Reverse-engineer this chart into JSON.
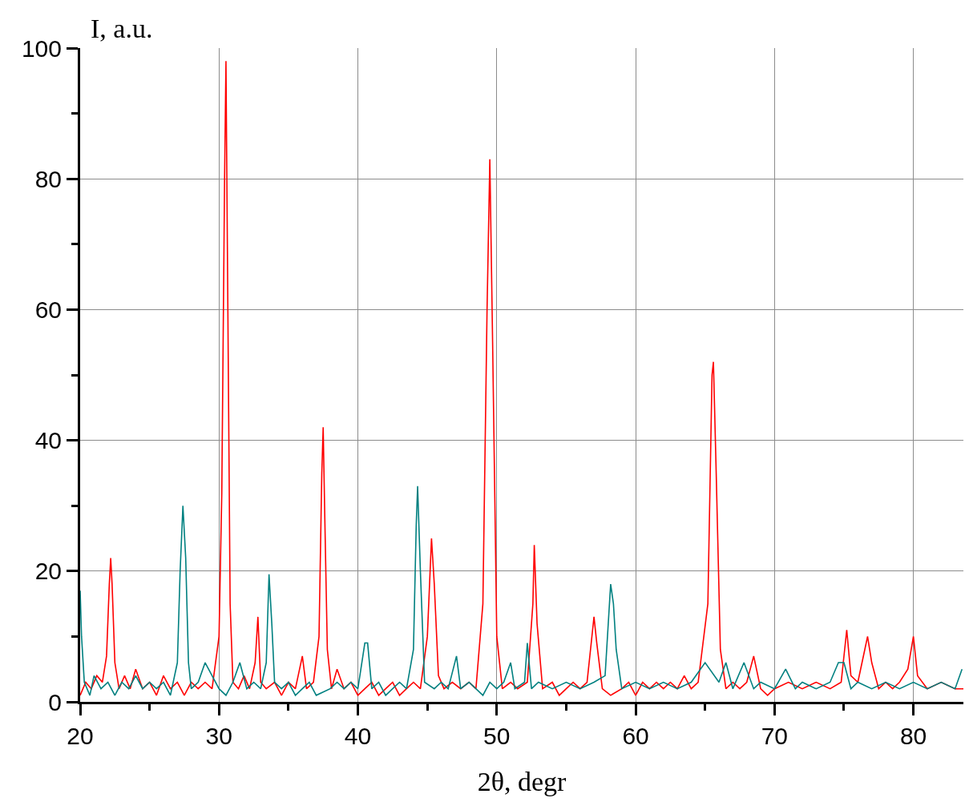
{
  "chart_data": {
    "type": "line",
    "xlabel": "2θ, degr",
    "ylabel": "I, a.u.",
    "xlim": [
      20,
      83.6
    ],
    "ylim": [
      0,
      100
    ],
    "xticks": [
      20,
      {
        "value": 25,
        "label": null
      },
      30,
      {
        "value": 35,
        "label": null
      },
      40,
      {
        "value": 45,
        "label": null
      },
      50,
      {
        "value": 55,
        "label": null
      },
      60,
      {
        "value": 65,
        "label": null
      },
      70,
      {
        "value": 75,
        "label": null
      },
      80
    ],
    "yticks": [
      0,
      {
        "value": 10,
        "label": null
      },
      20,
      {
        "value": 30,
        "label": null
      },
      40,
      {
        "value": 50,
        "label": null
      },
      60,
      {
        "value": 70,
        "label": null
      },
      80,
      {
        "value": 90,
        "label": null
      },
      100
    ],
    "grid": true,
    "marker": "none",
    "line_style": "solid",
    "series": [
      {
        "color": "#ff0000",
        "x": [
          20,
          20.4,
          20.8,
          21.2,
          21.6,
          21.9,
          22.1,
          22.2,
          22.3,
          22.5,
          22.8,
          23.2,
          23.6,
          24,
          24.5,
          25,
          25.5,
          26,
          26.5,
          27,
          27.5,
          28,
          28.5,
          29,
          29.5,
          30.0,
          30.2,
          30.4,
          30.5,
          30.6,
          30.8,
          31.0,
          31.4,
          31.8,
          32.2,
          32.6,
          32.8,
          33.0,
          33.4,
          34,
          34.5,
          35,
          35.5,
          36.0,
          36.3,
          36.8,
          37.2,
          37.4,
          37.5,
          37.6,
          37.8,
          38.1,
          38.5,
          39,
          39.5,
          40,
          40.5,
          41,
          41.5,
          42,
          42.5,
          43,
          43.5,
          44,
          44.5,
          45.0,
          45.3,
          45.5,
          45.8,
          46.2,
          46.8,
          47.4,
          48,
          48.5,
          49.0,
          49.3,
          49.5,
          49.7,
          50.0,
          50.4,
          51,
          51.5,
          52.2,
          52.6,
          52.7,
          52.9,
          53.3,
          54,
          54.5,
          55,
          55.5,
          56,
          56.5,
          56.9,
          57.0,
          57.2,
          57.6,
          58.2,
          59,
          59.5,
          60,
          60.5,
          61,
          61.5,
          62,
          62.5,
          63,
          63.5,
          64,
          64.5,
          65.2,
          65.5,
          65.6,
          65.8,
          66.1,
          66.5,
          67,
          67.5,
          68,
          68.5,
          69,
          69.5,
          70,
          71,
          72,
          73,
          74,
          74.8,
          75.2,
          75.5,
          76,
          76.5,
          76.7,
          77,
          77.5,
          78,
          78.5,
          79,
          79.6,
          80.0,
          80.3,
          81,
          82,
          83,
          83.6
        ],
        "values": [
          1,
          3,
          2,
          4,
          3,
          7,
          18,
          22,
          18,
          6,
          2,
          4,
          2,
          5,
          2,
          3,
          1,
          4,
          2,
          3,
          1,
          3,
          2,
          3,
          2,
          10,
          32,
          80,
          98,
          70,
          15,
          3,
          2,
          4,
          2,
          6,
          13,
          3,
          2,
          3,
          1,
          3,
          2,
          7,
          2,
          3,
          10,
          35,
          42,
          30,
          8,
          2,
          5,
          2,
          3,
          1,
          2,
          3,
          1,
          2,
          3,
          1,
          2,
          3,
          2,
          10,
          25,
          18,
          4,
          2,
          3,
          2,
          3,
          2,
          15,
          60,
          83,
          55,
          10,
          2,
          3,
          2,
          3,
          15,
          24,
          12,
          2,
          3,
          1,
          2,
          3,
          2,
          3,
          11,
          13,
          9,
          2,
          1,
          2,
          3,
          1,
          3,
          2,
          3,
          2,
          3,
          2,
          4,
          2,
          3,
          15,
          50,
          52,
          35,
          8,
          2,
          3,
          2,
          3,
          7,
          2,
          1,
          2,
          3,
          2,
          3,
          2,
          3,
          11,
          4,
          3,
          8,
          10,
          6,
          2,
          3,
          2,
          3,
          5,
          10,
          4,
          2,
          3,
          2,
          2
        ]
      },
      {
        "color": "#008080",
        "x": [
          20,
          20.1,
          20.3,
          20.7,
          21,
          21.5,
          22,
          22.5,
          23,
          23.5,
          24,
          24.5,
          25,
          25.5,
          26,
          26.5,
          27,
          27.2,
          27.4,
          27.6,
          27.8,
          28,
          28.5,
          29,
          29.5,
          30,
          30.5,
          31,
          31.5,
          32,
          32.5,
          33,
          33.4,
          33.6,
          33.8,
          34,
          34.5,
          35,
          35.5,
          36,
          36.5,
          37,
          38,
          38.5,
          39,
          39.5,
          40,
          40.5,
          40.7,
          41,
          41.5,
          42,
          42.5,
          43,
          43.5,
          44,
          44.2,
          44.3,
          44.5,
          44.8,
          45.5,
          46,
          46.5,
          47.1,
          47.4,
          48,
          48.5,
          49,
          49.5,
          50,
          50.5,
          51,
          51.3,
          52,
          52.2,
          52.5,
          53,
          54,
          55,
          56,
          57,
          57.8,
          58.2,
          58.4,
          58.6,
          59,
          60,
          61,
          62,
          63,
          64,
          65,
          66,
          66.5,
          67,
          67.8,
          68.5,
          69,
          70,
          70.8,
          71.5,
          72,
          73,
          74,
          74.6,
          75,
          75.5,
          76,
          77,
          78,
          79,
          80,
          81,
          82,
          83,
          83.5
        ],
        "values": [
          17,
          10,
          3,
          1,
          4,
          2,
          3,
          1,
          3,
          2,
          4,
          2,
          3,
          2,
          3,
          1,
          6,
          20,
          30,
          22,
          6,
          2,
          3,
          6,
          4,
          2,
          1,
          3,
          6,
          2,
          3,
          2,
          6,
          19.5,
          12,
          3,
          2,
          3,
          1,
          2,
          3,
          1,
          2,
          3,
          2,
          3,
          2,
          9,
          9,
          2,
          3,
          1,
          2,
          3,
          2,
          8,
          27,
          33,
          20,
          3,
          2,
          3,
          2,
          7,
          2,
          3,
          2,
          1,
          3,
          2,
          3,
          6,
          2,
          3,
          9,
          2,
          3,
          2,
          3,
          2,
          3,
          4,
          18,
          15,
          8,
          2,
          3,
          2,
          3,
          2,
          3,
          6,
          3,
          6,
          2,
          6,
          2,
          3,
          2,
          5,
          2,
          3,
          2,
          3,
          6,
          6,
          2,
          3,
          2,
          3,
          2,
          3,
          2,
          3,
          2,
          5
        ]
      }
    ]
  }
}
